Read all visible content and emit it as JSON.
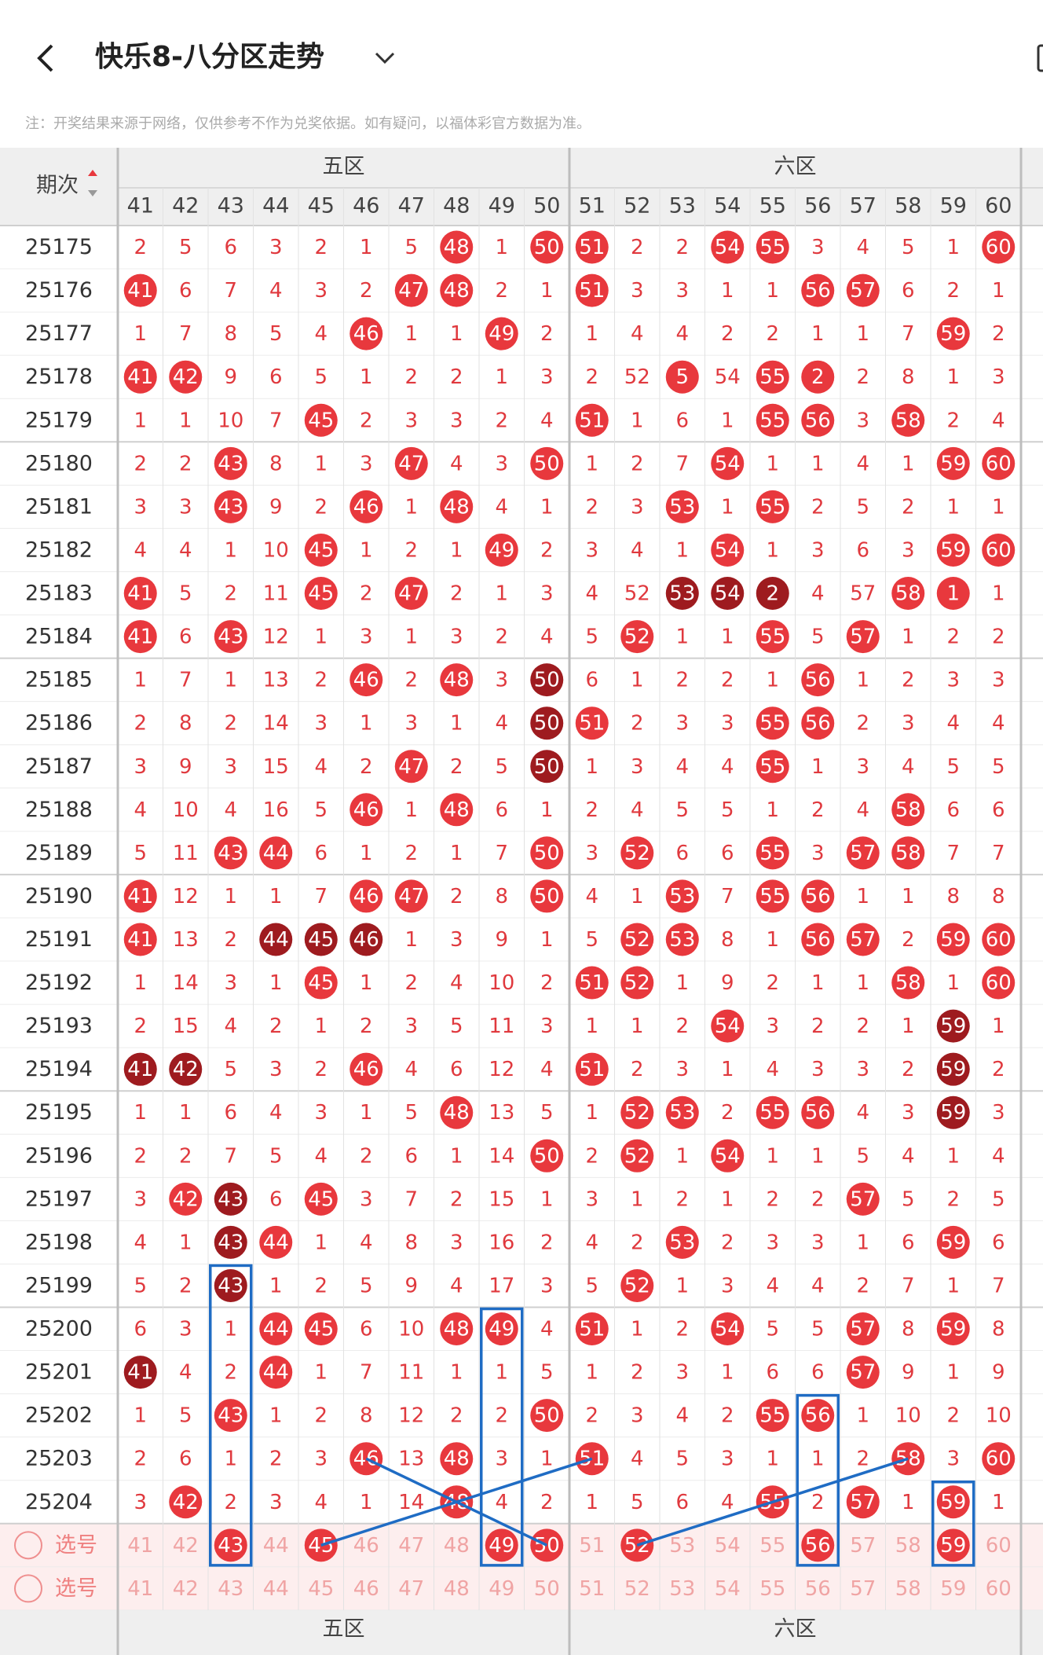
{
  "header": {
    "title": "快乐8-八分区走势",
    "note": "注：开奖结果来源于网络，仅供参考不作为兑奖依据。如有疑问，以福体彩官方数据为准。"
  },
  "table": {
    "issue_header": "期次",
    "zones": [
      "五区",
      "六区"
    ],
    "columns": [
      41,
      42,
      43,
      44,
      45,
      46,
      47,
      48,
      49,
      50,
      51,
      52,
      53,
      54,
      55,
      56,
      57,
      58,
      59,
      60
    ],
    "colors": {
      "hit": "#e8383d",
      "repeat": "#9e1b1f",
      "miss": "#e0393e",
      "idle": "#f0a4a4"
    },
    "rows": [
      {
        "issue": 25175,
        "values": [
          2,
          5,
          6,
          3,
          2,
          1,
          5,
          48,
          1,
          50,
          51,
          2,
          2,
          54,
          55,
          3,
          4,
          5,
          1,
          60
        ],
        "style": ".......r.rr..rr....r"
      },
      {
        "issue": 25176,
        "values": [
          41,
          6,
          7,
          4,
          3,
          2,
          47,
          48,
          2,
          1,
          51,
          3,
          3,
          1,
          1,
          56,
          57,
          6,
          2,
          1
        ],
        "style": "r.....rr..r....rr..."
      },
      {
        "issue": 25177,
        "values": [
          1,
          7,
          8,
          5,
          4,
          46,
          1,
          1,
          49,
          2,
          1,
          4,
          4,
          2,
          2,
          1,
          1,
          7,
          59,
          2
        ],
        "style": ".....r..r.........r."
      },
      {
        "issue": 25178,
        "values": [
          41,
          42,
          9,
          6,
          5,
          1,
          2,
          2,
          1,
          3,
          2,
          52,
          5,
          54,
          55,
          2,
          2,
          8,
          1,
          3
        ],
        "style": "rr..........r.rr....."
      },
      {
        "issue": 25179,
        "values": [
          1,
          1,
          10,
          7,
          45,
          2,
          3,
          3,
          2,
          4,
          51,
          1,
          6,
          1,
          55,
          56,
          3,
          58,
          2,
          4
        ],
        "style": "....r.....r...rr.r.."
      },
      {
        "issue": 25180,
        "values": [
          2,
          2,
          43,
          8,
          1,
          3,
          47,
          4,
          3,
          50,
          1,
          2,
          7,
          54,
          1,
          1,
          4,
          1,
          59,
          60
        ],
        "style": "..r...r..r...r....rr"
      },
      {
        "issue": 25181,
        "values": [
          3,
          3,
          43,
          9,
          2,
          46,
          1,
          48,
          4,
          1,
          2,
          3,
          53,
          1,
          55,
          2,
          5,
          2,
          1,
          1
        ],
        "style": "..r..r.r....r.r....."
      },
      {
        "issue": 25182,
        "values": [
          4,
          4,
          1,
          10,
          45,
          1,
          2,
          1,
          49,
          2,
          3,
          4,
          1,
          54,
          1,
          3,
          6,
          3,
          59,
          60
        ],
        "style": "....r...r....r....rr"
      },
      {
        "issue": 25183,
        "values": [
          41,
          5,
          2,
          11,
          45,
          2,
          47,
          2,
          1,
          3,
          4,
          52,
          53,
          54,
          2,
          4,
          57,
          58,
          1,
          1
        ],
        "style": "r...r.r.....ddd..rr.."
      },
      {
        "issue": 25184,
        "values": [
          41,
          6,
          43,
          12,
          1,
          3,
          1,
          3,
          2,
          4,
          5,
          52,
          1,
          1,
          55,
          5,
          57,
          1,
          2,
          2
        ],
        "style": "r.r........r..r.r..."
      },
      {
        "issue": 25185,
        "values": [
          1,
          7,
          1,
          13,
          2,
          46,
          2,
          48,
          3,
          50,
          6,
          1,
          2,
          2,
          1,
          56,
          1,
          2,
          3,
          3
        ],
        "style": ".....r.r.d.....r...."
      },
      {
        "issue": 25186,
        "values": [
          2,
          8,
          2,
          14,
          3,
          1,
          3,
          1,
          4,
          50,
          51,
          2,
          3,
          3,
          55,
          56,
          2,
          3,
          4,
          4
        ],
        "style": ".........dr...rr...."
      },
      {
        "issue": 25187,
        "values": [
          3,
          9,
          3,
          15,
          4,
          2,
          47,
          2,
          5,
          50,
          1,
          3,
          4,
          4,
          55,
          1,
          3,
          4,
          5,
          5
        ],
        "style": "......r..d....r....."
      },
      {
        "issue": 25188,
        "values": [
          4,
          10,
          4,
          16,
          5,
          46,
          1,
          48,
          6,
          1,
          2,
          4,
          5,
          5,
          1,
          2,
          4,
          58,
          6,
          6
        ],
        "style": ".....r.r.........r.."
      },
      {
        "issue": 25189,
        "values": [
          5,
          11,
          43,
          44,
          6,
          1,
          2,
          1,
          7,
          50,
          3,
          52,
          6,
          6,
          55,
          3,
          57,
          58,
          7,
          7
        ],
        "style": "..rr.....r.r..r.rr.."
      },
      {
        "issue": 25190,
        "values": [
          41,
          12,
          1,
          1,
          7,
          46,
          47,
          2,
          8,
          50,
          4,
          1,
          53,
          7,
          55,
          56,
          1,
          1,
          8,
          8
        ],
        "style": "r....rr..r..r.rr...."
      },
      {
        "issue": 25191,
        "values": [
          41,
          13,
          2,
          44,
          45,
          46,
          1,
          3,
          9,
          1,
          5,
          52,
          53,
          8,
          1,
          56,
          57,
          2,
          59,
          60
        ],
        "style": "r..ddd.....rr..rr.rr"
      },
      {
        "issue": 25192,
        "values": [
          1,
          14,
          3,
          1,
          45,
          1,
          2,
          4,
          10,
          2,
          51,
          52,
          1,
          9,
          2,
          1,
          1,
          58,
          1,
          60
        ],
        "style": "....r.....rr.....r.r"
      },
      {
        "issue": 25193,
        "values": [
          2,
          15,
          4,
          2,
          1,
          2,
          3,
          5,
          11,
          3,
          1,
          1,
          2,
          54,
          3,
          2,
          2,
          1,
          59,
          1
        ],
        "style": ".............r....d."
      },
      {
        "issue": 25194,
        "values": [
          41,
          42,
          5,
          3,
          2,
          46,
          4,
          6,
          12,
          4,
          51,
          2,
          3,
          1,
          4,
          3,
          3,
          2,
          59,
          2
        ],
        "style": "dd...r....r.......d."
      },
      {
        "issue": 25195,
        "values": [
          1,
          1,
          6,
          4,
          3,
          1,
          5,
          48,
          13,
          5,
          1,
          52,
          53,
          2,
          55,
          56,
          4,
          3,
          59,
          3
        ],
        "style": ".......r...rr.rr..d."
      },
      {
        "issue": 25196,
        "values": [
          2,
          2,
          7,
          5,
          4,
          2,
          6,
          1,
          14,
          50,
          2,
          52,
          1,
          54,
          1,
          1,
          5,
          4,
          1,
          4
        ],
        "style": ".........r.r.r......"
      },
      {
        "issue": 25197,
        "values": [
          3,
          42,
          43,
          6,
          45,
          3,
          7,
          2,
          15,
          1,
          3,
          1,
          2,
          1,
          2,
          2,
          57,
          5,
          2,
          5
        ],
        "style": ".rd.r...........r..."
      },
      {
        "issue": 25198,
        "values": [
          4,
          1,
          43,
          44,
          1,
          4,
          8,
          3,
          16,
          2,
          4,
          2,
          53,
          2,
          3,
          3,
          1,
          6,
          59,
          6
        ],
        "style": "..dr........r.....r."
      },
      {
        "issue": 25199,
        "values": [
          5,
          2,
          43,
          1,
          2,
          5,
          9,
          4,
          17,
          3,
          5,
          52,
          1,
          3,
          4,
          4,
          2,
          7,
          1,
          7
        ],
        "style": "..d........r........"
      },
      {
        "issue": 25200,
        "values": [
          6,
          3,
          1,
          44,
          45,
          6,
          10,
          48,
          49,
          4,
          51,
          1,
          2,
          54,
          5,
          5,
          57,
          8,
          59,
          8
        ],
        "style": "...rr..rr.r..r..r.r."
      },
      {
        "issue": 25201,
        "values": [
          41,
          4,
          2,
          44,
          1,
          7,
          11,
          1,
          1,
          5,
          1,
          2,
          3,
          1,
          6,
          6,
          57,
          9,
          1,
          9
        ],
        "style": "d..r............r..."
      },
      {
        "issue": 25202,
        "values": [
          1,
          5,
          43,
          1,
          2,
          8,
          12,
          2,
          2,
          50,
          2,
          3,
          4,
          2,
          55,
          56,
          1,
          10,
          2,
          10
        ],
        "style": "..r......r....rr...."
      },
      {
        "issue": 25203,
        "values": [
          2,
          6,
          1,
          2,
          3,
          46,
          13,
          48,
          3,
          1,
          51,
          4,
          5,
          3,
          1,
          1,
          2,
          58,
          3,
          60
        ],
        "style": ".....r.r..r......r.r"
      },
      {
        "issue": 25204,
        "values": [
          3,
          42,
          2,
          3,
          4,
          1,
          14,
          48,
          4,
          2,
          1,
          5,
          6,
          4,
          55,
          2,
          57,
          1,
          59,
          1
        ],
        "style": ".r.....r......r.r.r."
      }
    ],
    "select_rows": [
      {
        "label": "选号",
        "style": "..r.r...rr.r...r..r."
      },
      {
        "label": "选号",
        "style": "...................."
      }
    ]
  }
}
